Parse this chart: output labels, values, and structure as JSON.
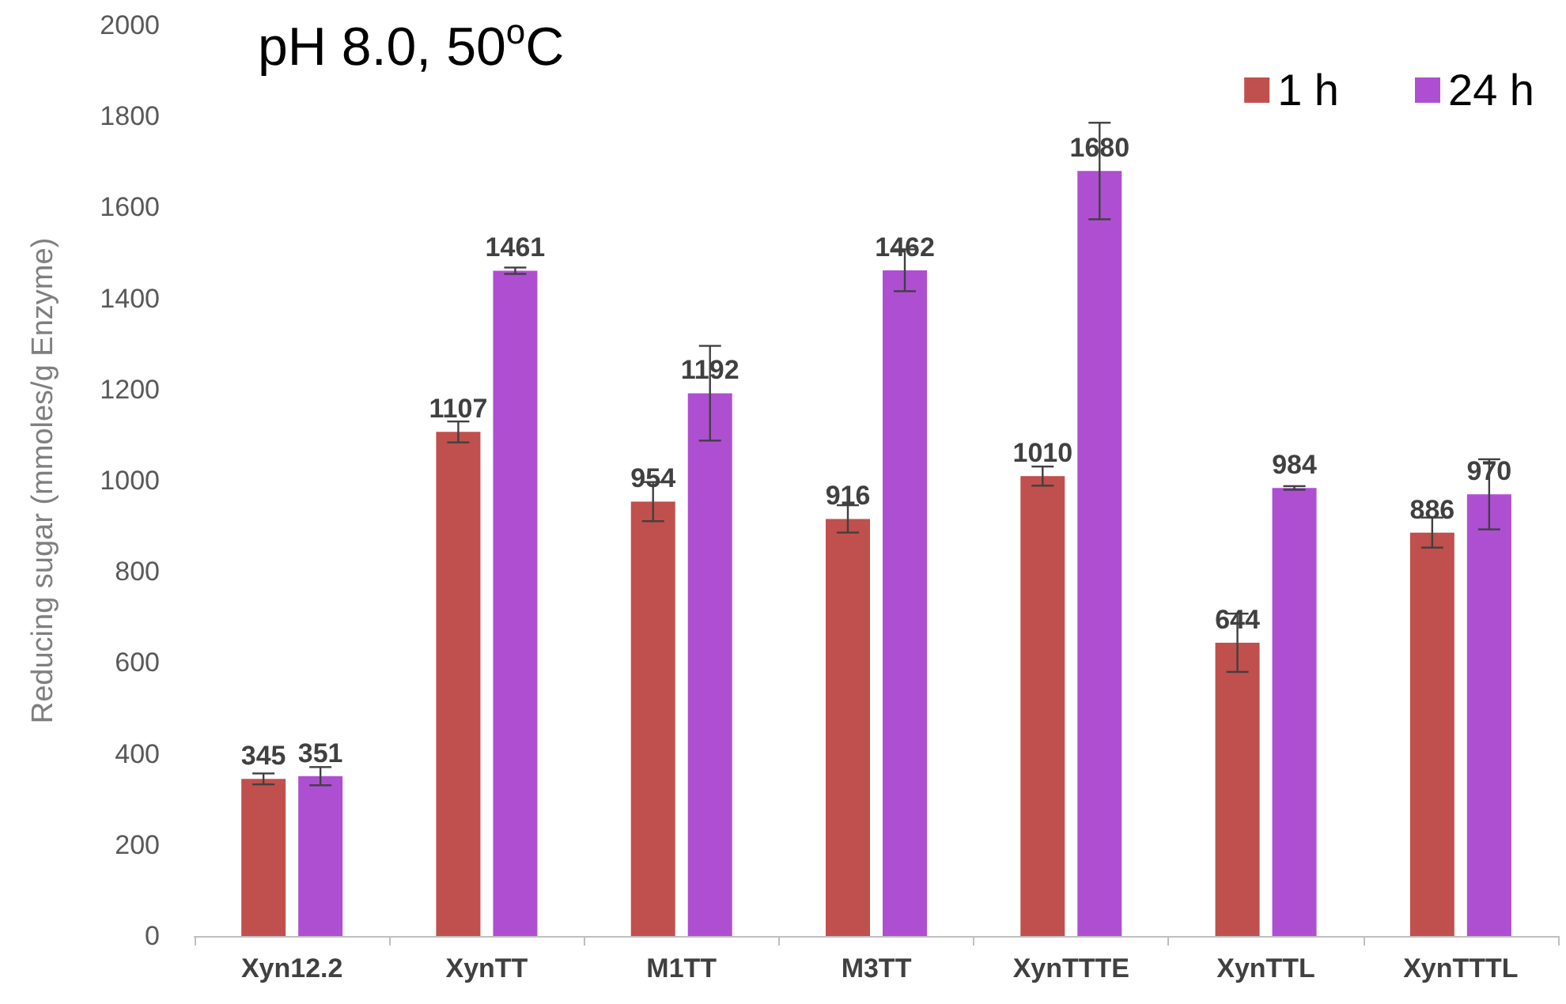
{
  "chart_data": {
    "type": "bar",
    "title": "pH 8.0, 50$^{o}$C",
    "ylabel": "Reducing sugar (mmoles/g Enzyme)",
    "categories": [
      "Xyn12.2",
      "XynTT",
      "M1TT",
      "M3TT",
      "XynTTTE",
      "XynTTL",
      "XynTTTL"
    ],
    "series": [
      {
        "name": "1 h",
        "color": "#c0504d",
        "values": [
          345,
          1107,
          954,
          916,
          1010,
          644,
          886
        ],
        "errors": [
          12,
          23,
          43,
          30,
          21,
          64,
          33
        ]
      },
      {
        "name": "24 h",
        "color": "#ae4fd2",
        "values": [
          351,
          1461,
          1192,
          1462,
          1680,
          984,
          970
        ],
        "errors": [
          20,
          7,
          104,
          46,
          106,
          4,
          77
        ]
      }
    ],
    "ylim": [
      0,
      2000
    ],
    "yticks": [
      0,
      200,
      400,
      600,
      800,
      1000,
      1200,
      1400,
      1600,
      1800,
      2000
    ],
    "grid": false,
    "legend": "top right",
    "data_labels": true
  }
}
